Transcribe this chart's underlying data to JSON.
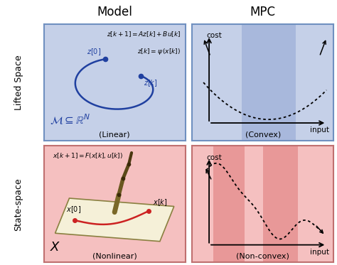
{
  "title_model": "Model",
  "title_mpc": "MPC",
  "label_lifted": "Lifted Space",
  "label_state": "State-space",
  "label_linear": "(Linear)",
  "label_nonlinear": "(Nonlinear)",
  "label_convex": "(Convex)",
  "label_nonconvex": "(Non-convex)",
  "label_cost": "cost",
  "label_input": "input",
  "eq_lifted_1": "$z[k+1] = Az[k] + Bu[k]$",
  "eq_lifted_2": "$z[k] = \\psi\\,(x[k])$",
  "eq_state": "$x[k+1] = F(x[k], u[k])$",
  "label_M": "$\\mathcal{M} \\subseteq \\mathbb{R}^N$",
  "label_X": "$X$",
  "label_z0": "$z[0]$",
  "label_zk": "$z[k]$",
  "label_x0": "$x[0]$",
  "label_xk": "$x[k]$",
  "bg_blue": "#c5d0e8",
  "bg_red": "#f5c0c0",
  "highlight_blue": "#a8b8dc",
  "highlight_red_dark": "#e89898",
  "highlight_red_light": "#f0c8c8",
  "curve_blue": "#2040a0",
  "curve_red": "#cc2222",
  "border_blue": "#7090c0",
  "border_red": "#c07070",
  "fig_bg": "#ffffff",
  "surface_color": "#f5f0d8",
  "surface_edge": "#8a8040",
  "arm_color": "#6b5a20"
}
